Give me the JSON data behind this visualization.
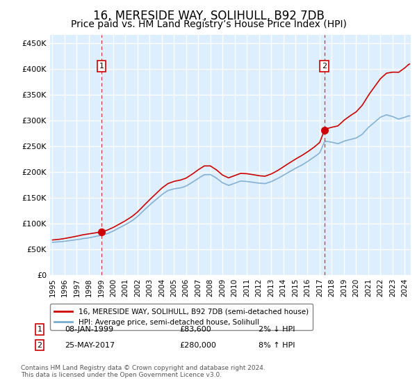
{
  "title": "16, MERESIDE WAY, SOLIHULL, B92 7DB",
  "subtitle": "Price paid vs. HM Land Registry’s House Price Index (HPI)",
  "ylabel_ticks": [
    "£0",
    "£50K",
    "£100K",
    "£150K",
    "£200K",
    "£250K",
    "£300K",
    "£350K",
    "£400K",
    "£450K"
  ],
  "ytick_values": [
    0,
    50000,
    100000,
    150000,
    200000,
    250000,
    300000,
    350000,
    400000,
    450000
  ],
  "ylim": [
    0,
    465000
  ],
  "xlim_start": 1994.8,
  "xlim_end": 2024.5,
  "transaction1_x": 1999.03,
  "transaction1_y": 83600,
  "transaction2_x": 2017.38,
  "transaction2_y": 280000,
  "legend_line1": "16, MERESIDE WAY, SOLIHULL, B92 7DB (semi-detached house)",
  "legend_line2": "HPI: Average price, semi-detached house, Solihull",
  "annotation1_label": "1",
  "annotation1_date": "08-JAN-1999",
  "annotation1_price": "£83,600",
  "annotation1_hpi": "2% ↓ HPI",
  "annotation2_label": "2",
  "annotation2_date": "25-MAY-2017",
  "annotation2_price": "£280,000",
  "annotation2_hpi": "8% ↑ HPI",
  "footer": "Contains HM Land Registry data © Crown copyright and database right 2024.\nThis data is licensed under the Open Government Licence v3.0.",
  "line_color_red": "#cc0000",
  "line_color_blue": "#7aabcf",
  "bg_color": "#ddeeff",
  "grid_color": "#c8d8e8",
  "title_fontsize": 12,
  "subtitle_fontsize": 10
}
